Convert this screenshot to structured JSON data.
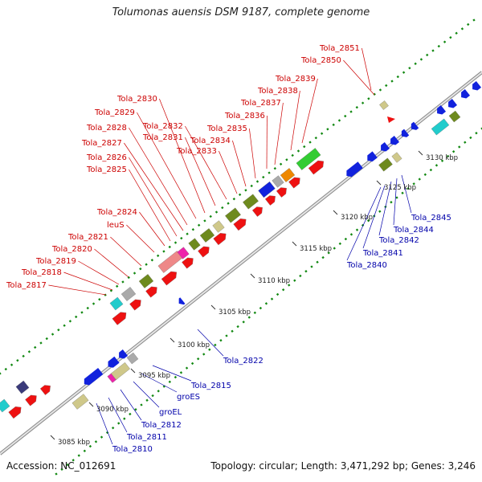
{
  "title": "Tolumonas auensis DSM 9187, complete genome",
  "accession": "Accession: NC_012691",
  "summary": "Topology: circular; Length: 3,471,292 bp; Genes: 3,246",
  "scale_labels": [
    "3085 kbp",
    "3090 kbp",
    "3095 kbp",
    "3100 kbp",
    "3105 kbp",
    "3110 kbp",
    "3115 kbp",
    "3120 kbp",
    "3125 kbp",
    "3130 kbp"
  ],
  "top_labels": [
    "Tola_2851",
    "Tola_2850",
    "Tola_2839",
    "Tola_2838",
    "Tola_2837",
    "Tola_2836",
    "Tola_2835",
    "Tola_2834",
    "Tola_2833",
    "Tola_2832",
    "Tola_2831",
    "Tola_2830",
    "Tola_2829",
    "Tola_2828",
    "Tola_2827",
    "Tola_2826",
    "Tola_2825",
    "Tola_2824",
    "leuS",
    "Tola_2821",
    "Tola_2820",
    "Tola_2819",
    "Tola_2818",
    "Tola_2817"
  ],
  "bottom_labels": [
    "Tola_2845",
    "Tola_2844",
    "Tola_2842",
    "Tola_2841",
    "Tola_2840",
    "Tola_2822",
    "Tola_2815",
    "groES",
    "groEL",
    "Tola_2812",
    "Tola_2811",
    "Tola_2810"
  ],
  "colors": {
    "label_top": "#cc0000",
    "label_bottom": "#0000aa",
    "gene_red": "#ee1111",
    "gene_blue": "#1122dd",
    "gene_olive": "#6e8a1e",
    "gene_green": "#33cc33",
    "gene_cyan": "#22cccc",
    "gene_pink": "#ee8888",
    "gene_magenta": "#ee22aa",
    "gene_khaki": "#cfc88a",
    "gene_navy": "#3a3a7a",
    "gene_orange": "#ee8800",
    "gene_gray": "#aaaaaa",
    "tick_green": "#118811",
    "backbone": "#999999"
  }
}
